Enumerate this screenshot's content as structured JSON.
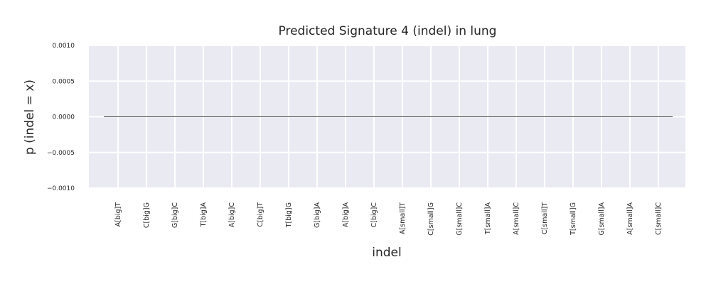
{
  "chart_data": {
    "type": "line",
    "title": "Predicted Signature 4 (indel) in lung",
    "xlabel": "indel",
    "ylabel": "p (indel = x)",
    "categories": [
      "A[big]T",
      "C[big]G",
      "G[big]C",
      "T[big]A",
      "A[big]C",
      "C[big]T",
      "T[big]G",
      "G[big]A",
      "A[big]A",
      "C[big]C",
      "A[small]T",
      "C[small]G",
      "G[small]C",
      "T[small]A",
      "A[small]C",
      "C[small]T",
      "T[small]G",
      "G[small]A",
      "A[small]A",
      "C[small]C"
    ],
    "series": [
      {
        "values": [
          0,
          0,
          0,
          0,
          0,
          0,
          0,
          0,
          0,
          0,
          0,
          0,
          0,
          0,
          0,
          0,
          0,
          0,
          0,
          0
        ]
      }
    ],
    "ylim": [
      -0.001,
      0.001
    ],
    "yticks": [
      "0.0010",
      "0.0005",
      "0.0000",
      "−0.0005",
      "−0.0010"
    ],
    "yticks_values": [
      0.001,
      0.0005,
      0,
      -0.0005,
      -0.001
    ],
    "grid": true,
    "background": "#EAEAF2",
    "grid_color": "#FFFFFF",
    "line_color": "#000000"
  }
}
